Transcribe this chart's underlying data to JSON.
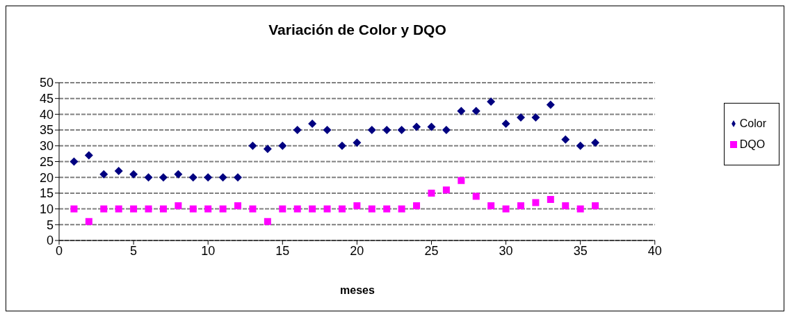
{
  "chart_data": {
    "type": "scatter",
    "title": "Variación de Color y DQO",
    "xlabel": "meses",
    "x": [
      1,
      2,
      3,
      4,
      5,
      6,
      7,
      8,
      9,
      10,
      11,
      12,
      13,
      14,
      15,
      16,
      17,
      18,
      19,
      20,
      21,
      22,
      23,
      24,
      25,
      26,
      27,
      28,
      29,
      30,
      31,
      32,
      33,
      34,
      35,
      36
    ],
    "series": [
      {
        "name": "Color",
        "color": "#000080",
        "marker": "diamond",
        "values": [
          25,
          27,
          21,
          22,
          21,
          20,
          20,
          21,
          20,
          20,
          20,
          20,
          30,
          29,
          30,
          35,
          37,
          35,
          30,
          31,
          35,
          35,
          35,
          36,
          36,
          35,
          41,
          41,
          44,
          37,
          39,
          39,
          43,
          32,
          30,
          31
        ]
      },
      {
        "name": "DQO",
        "color": "#ff00ff",
        "marker": "square",
        "values": [
          10,
          6,
          10,
          10,
          10,
          10,
          10,
          11,
          10,
          10,
          10,
          11,
          10,
          6,
          10,
          10,
          10,
          10,
          10,
          11,
          10,
          10,
          10,
          11,
          15,
          16,
          19,
          14,
          11,
          10,
          11,
          12,
          13,
          11,
          10,
          11
        ]
      }
    ],
    "xlim": [
      0,
      40
    ],
    "xticks": [
      0,
      5,
      10,
      15,
      20,
      25,
      30,
      35,
      40
    ],
    "ylim": [
      0,
      50
    ],
    "yticks": [
      0,
      5,
      10,
      15,
      20,
      25,
      30,
      35,
      40,
      45,
      50
    ],
    "grid": "y",
    "legend": "right"
  }
}
